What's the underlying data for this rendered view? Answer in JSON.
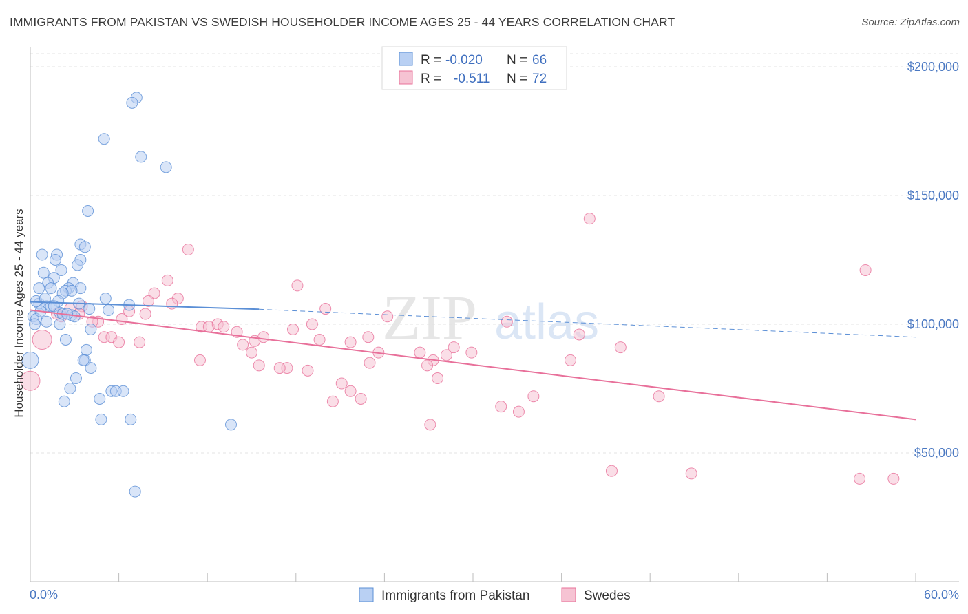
{
  "header": {
    "title": "IMMIGRANTS FROM PAKISTAN VS SWEDISH HOUSEHOLDER INCOME AGES 25 - 44 YEARS CORRELATION CHART",
    "source": "Source: ZipAtlas.com"
  },
  "watermark": {
    "zip": "ZIP",
    "atlas": "atlas"
  },
  "colors": {
    "blue": "#5b8fd6",
    "blue_fill": "#b9d0f3",
    "pink": "#e8709a",
    "pink_fill": "#f6c3d3",
    "tick_text": "#4a78c2",
    "grid": "#e3e3e3"
  },
  "legend": {
    "rows": [
      {
        "r_label": "R =",
        "r_value": "-0.020",
        "n_label": "N =",
        "n_value": "66"
      },
      {
        "r_label": "R =",
        "r_value": "-0.511",
        "n_label": "N =",
        "n_value": "72"
      }
    ]
  },
  "chart_data": {
    "type": "scatter",
    "title": "IMMIGRANTS FROM PAKISTAN VS SWEDISH HOUSEHOLDER INCOME AGES 25 - 44 YEARS CORRELATION CHART",
    "xlabel": "",
    "ylabel": "Householder Income Ages 25 - 44 years",
    "xlim": [
      0,
      60
    ],
    "ylim": [
      0,
      210000
    ],
    "x_tick_labels": [
      "0.0%",
      "60.0%"
    ],
    "y_ticks": [
      {
        "value": 50000,
        "label": "$50,000"
      },
      {
        "value": 100000,
        "label": "$100,000"
      },
      {
        "value": 150000,
        "label": "$150,000"
      },
      {
        "value": 200000,
        "label": "$200,000"
      }
    ],
    "grid": true,
    "legend_position": "top-center",
    "series": [
      {
        "name": "Immigrants from Pakistan",
        "color": "#5b8fd6",
        "r": -0.02,
        "n": 66,
        "trend": {
          "x_start": 0,
          "y_start": 108700,
          "x_solid_end": 15.5,
          "y_solid_end": 105800,
          "x_end": 60,
          "y_end": 95000
        },
        "points": [
          [
            7.2,
            188000,
            8
          ],
          [
            6.9,
            186000,
            8
          ],
          [
            5.0,
            172000,
            8
          ],
          [
            7.5,
            165000,
            8
          ],
          [
            9.2,
            161000,
            8
          ],
          [
            3.9,
            144000,
            8
          ],
          [
            3.4,
            131000,
            8
          ],
          [
            3.7,
            130000,
            8
          ],
          [
            0.8,
            127000,
            8
          ],
          [
            1.8,
            127000,
            8
          ],
          [
            1.7,
            125000,
            8
          ],
          [
            3.4,
            125000,
            8
          ],
          [
            3.2,
            123000,
            8
          ],
          [
            2.1,
            121000,
            8
          ],
          [
            0.9,
            120000,
            8
          ],
          [
            1.6,
            118000,
            8
          ],
          [
            1.2,
            116000,
            8
          ],
          [
            2.9,
            116000,
            8
          ],
          [
            0.6,
            114000,
            8
          ],
          [
            1.4,
            114000,
            8
          ],
          [
            2.6,
            114000,
            8
          ],
          [
            3.4,
            114000,
            8
          ],
          [
            2.4,
            113000,
            8
          ],
          [
            2.8,
            113000,
            8
          ],
          [
            2.2,
            112000,
            8
          ],
          [
            5.1,
            110000,
            8
          ],
          [
            1.9,
            109000,
            8
          ],
          [
            0.6,
            108000,
            8
          ],
          [
            1.1,
            107000,
            8
          ],
          [
            1.4,
            107000,
            8
          ],
          [
            1.6,
            107000,
            8
          ],
          [
            6.7,
            107500,
            8
          ],
          [
            4.0,
            106000,
            8
          ],
          [
            5.3,
            105500,
            8
          ],
          [
            2.0,
            104500,
            8
          ],
          [
            2.2,
            104000,
            8
          ],
          [
            2.8,
            103500,
            8
          ],
          [
            3.0,
            103000,
            8
          ],
          [
            0.2,
            103000,
            8
          ],
          [
            0.4,
            102000,
            8
          ],
          [
            1.1,
            101000,
            8
          ],
          [
            0.3,
            100000,
            8
          ],
          [
            4.1,
            98000,
            8
          ],
          [
            2.4,
            94000,
            8
          ],
          [
            3.8,
            90000,
            8
          ],
          [
            0.0,
            86000,
            12
          ],
          [
            3.7,
            86000,
            8
          ],
          [
            3.6,
            86000,
            8
          ],
          [
            4.1,
            83000,
            8
          ],
          [
            3.1,
            79000,
            8
          ],
          [
            2.7,
            75000,
            8
          ],
          [
            5.5,
            74000,
            8
          ],
          [
            5.8,
            74000,
            8
          ],
          [
            6.3,
            74000,
            8
          ],
          [
            4.7,
            71000,
            8
          ],
          [
            2.3,
            70000,
            8
          ],
          [
            4.8,
            63000,
            8
          ],
          [
            6.8,
            63000,
            8
          ],
          [
            13.6,
            61000,
            8
          ],
          [
            7.1,
            35000,
            8
          ],
          [
            0.4,
            109000,
            8
          ],
          [
            2.5,
            104000,
            8
          ],
          [
            1.0,
            110000,
            8
          ],
          [
            0.7,
            105000,
            8
          ],
          [
            3.3,
            108000,
            8
          ],
          [
            2.0,
            100000,
            8
          ]
        ]
      },
      {
        "name": "Swedes",
        "color": "#e8709a",
        "r": -0.511,
        "n": 72,
        "trend": {
          "x_start": 0,
          "y_start": 105500,
          "x_end": 60,
          "y_end": 63000
        },
        "points": [
          [
            0.8,
            94000,
            14
          ],
          [
            0.0,
            78000,
            14
          ],
          [
            37.9,
            141000,
            8
          ],
          [
            56.6,
            121000,
            8
          ],
          [
            10.7,
            129000,
            8
          ],
          [
            9.3,
            117000,
            8
          ],
          [
            18.1,
            115000,
            8
          ],
          [
            8.4,
            112000,
            8
          ],
          [
            10.0,
            110000,
            8
          ],
          [
            8.0,
            109000,
            8
          ],
          [
            9.6,
            108000,
            8
          ],
          [
            3.5,
            107000,
            8
          ],
          [
            20.0,
            106000,
            8
          ],
          [
            6.7,
            105000,
            8
          ],
          [
            7.8,
            104000,
            8
          ],
          [
            1.8,
            104000,
            8
          ],
          [
            3.3,
            104000,
            8
          ],
          [
            2.1,
            103000,
            8
          ],
          [
            24.2,
            103000,
            8
          ],
          [
            6.2,
            102000,
            8
          ],
          [
            4.6,
            101000,
            8
          ],
          [
            32.3,
            101000,
            8
          ],
          [
            19.1,
            100000,
            8
          ],
          [
            11.6,
            99000,
            8
          ],
          [
            12.1,
            99000,
            8
          ],
          [
            12.7,
            100000,
            8
          ],
          [
            13.1,
            99000,
            8
          ],
          [
            17.8,
            98000,
            8
          ],
          [
            14.0,
            97000,
            8
          ],
          [
            37.2,
            96000,
            8
          ],
          [
            22.9,
            95000,
            8
          ],
          [
            5.0,
            95000,
            8
          ],
          [
            5.5,
            95000,
            8
          ],
          [
            15.8,
            95000,
            8
          ],
          [
            19.6,
            94000,
            8
          ],
          [
            15.2,
            93500,
            8
          ],
          [
            14.4,
            92000,
            8
          ],
          [
            6.0,
            93000,
            8
          ],
          [
            7.4,
            93000,
            8
          ],
          [
            21.7,
            93000,
            8
          ],
          [
            28.7,
            91000,
            8
          ],
          [
            40.0,
            91000,
            8
          ],
          [
            15.0,
            89000,
            8
          ],
          [
            23.6,
            89000,
            8
          ],
          [
            26.4,
            89000,
            8
          ],
          [
            29.9,
            89000,
            8
          ],
          [
            28.2,
            88000,
            8
          ],
          [
            27.3,
            86000,
            8
          ],
          [
            11.5,
            86000,
            8
          ],
          [
            36.6,
            86000,
            8
          ],
          [
            23.0,
            85000,
            8
          ],
          [
            26.9,
            84000,
            8
          ],
          [
            15.5,
            84000,
            8
          ],
          [
            17.4,
            83000,
            8
          ],
          [
            16.9,
            83000,
            8
          ],
          [
            18.8,
            82000,
            8
          ],
          [
            27.6,
            79000,
            8
          ],
          [
            21.1,
            77000,
            8
          ],
          [
            21.7,
            74000,
            8
          ],
          [
            34.1,
            72000,
            8
          ],
          [
            42.6,
            72000,
            8
          ],
          [
            22.4,
            71000,
            8
          ],
          [
            20.5,
            70000,
            8
          ],
          [
            31.9,
            68000,
            8
          ],
          [
            33.1,
            66000,
            8
          ],
          [
            27.1,
            61000,
            8
          ],
          [
            39.4,
            43000,
            8
          ],
          [
            44.8,
            42000,
            8
          ],
          [
            56.2,
            40000,
            8
          ],
          [
            58.5,
            40000,
            8
          ],
          [
            2.7,
            106000,
            8
          ],
          [
            4.2,
            101000,
            8
          ]
        ]
      }
    ]
  }
}
